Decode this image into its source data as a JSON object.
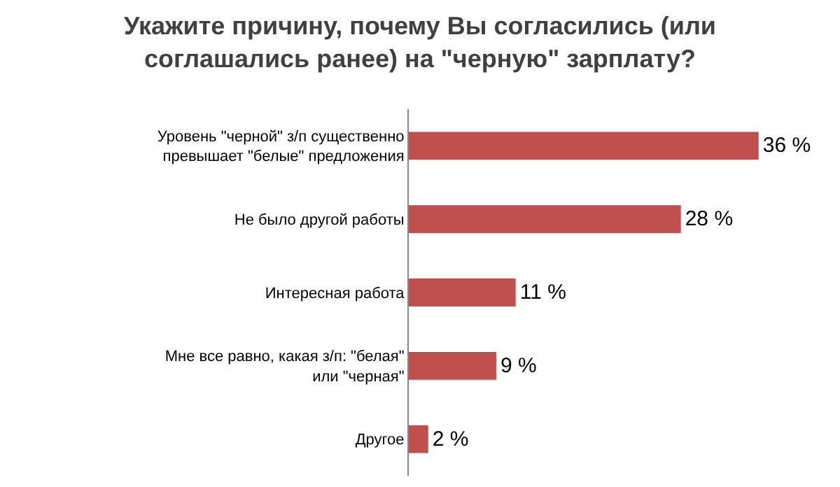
{
  "chart_data": {
    "type": "bar",
    "orientation": "horizontal",
    "title": "Укажите причину, почему Вы согласились (или соглашались ранее) на \"черную\" зарплату?",
    "categories": [
      "Уровень \"черной\" з/п существенно превышает \"белые\" предложения",
      "Не было другой работы",
      "Интересная работа",
      "Мне все равно, какая з/п: \"белая\" или \"черная\"",
      "Другое"
    ],
    "values": [
      36,
      28,
      11,
      9,
      2
    ],
    "value_labels": [
      "36 %",
      "28 %",
      "11 %",
      "9 %",
      "2 %"
    ],
    "color": "#c0504d"
  }
}
